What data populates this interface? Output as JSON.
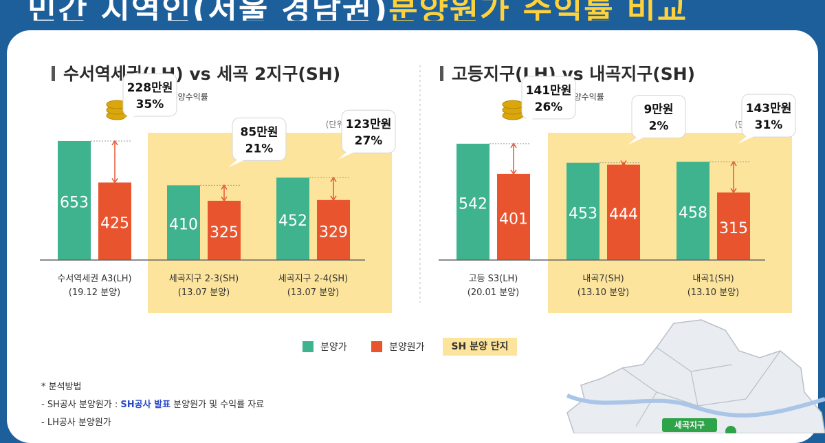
{
  "header": {
    "title_white": "민간 지역인(서울 경남권)",
    "title_yellow": "분양원가 수익률 비교"
  },
  "chart_data": [
    {
      "type": "bar",
      "title": "수서역세권(LH) vs 세곡 2지구(SH)",
      "unit": "(단위 : 만원/㎡)",
      "badge_label": "분양수익 · 분양수익률",
      "categories": [
        {
          "name": "수서역세권 A3(LH)",
          "date": "(19.12 분양)"
        },
        {
          "name": "세곡지구 2-3(SH)",
          "date": "(13.07 분양)"
        },
        {
          "name": "세곡지구 2-4(SH)",
          "date": "(13.07 분양)"
        }
      ],
      "series": [
        {
          "name": "분양가",
          "values": [
            653,
            410,
            452
          ]
        },
        {
          "name": "분양원가",
          "values": [
            425,
            325,
            329
          ]
        }
      ],
      "annotations": [
        {
          "amount": "228만원",
          "pct": "35%"
        },
        {
          "amount": "85만원",
          "pct": "21%"
        },
        {
          "amount": "123만원",
          "pct": "27%"
        }
      ],
      "sh_highlight": [
        1,
        2
      ]
    },
    {
      "type": "bar",
      "title": "고등지구(LH) vs 내곡지구(SH)",
      "unit": "(단위 : 만원/㎡)",
      "badge_label": "분양수익 · 분양수익률",
      "categories": [
        {
          "name": "고등 S3(LH)",
          "date": "(20.01 분양)"
        },
        {
          "name": "내곡7(SH)",
          "date": "(13.10 분양)"
        },
        {
          "name": "내곡1(SH)",
          "date": "(13.10 분양)"
        }
      ],
      "series": [
        {
          "name": "분양가",
          "values": [
            542,
            453,
            458
          ]
        },
        {
          "name": "분양원가",
          "values": [
            401,
            444,
            315
          ]
        }
      ],
      "annotations": [
        {
          "amount": "141만원",
          "pct": "26%"
        },
        {
          "amount": "9만원",
          "pct": "2%"
        },
        {
          "amount": "143만원",
          "pct": "31%"
        }
      ],
      "sh_highlight": [
        1,
        2
      ]
    }
  ],
  "legend": {
    "price": "분양가",
    "cost": "분양원가",
    "sh": "SH 분양 단지"
  },
  "method": {
    "title": "* 분석방법",
    "line1_prefix": "- SH공사 분양원가 :",
    "line1_blue": "SH공사 발표",
    "line1_suffix": "분양원가 및 수익률 자료",
    "line2": "- LH공사 분양원가"
  },
  "map": {
    "label": "세곡지구"
  },
  "colors": {
    "price": "#3fb38e",
    "cost": "#e8542e",
    "sh_bg": "#fde49c",
    "header_bg": "#1d5f9b",
    "title_yellow": "#ffd23c"
  }
}
